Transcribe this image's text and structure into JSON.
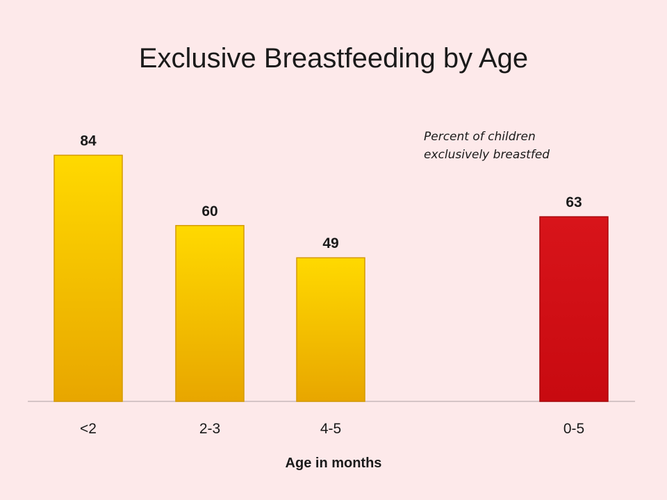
{
  "chart_data": {
    "type": "bar",
    "title": "Exclusive Breastfeeding by Age",
    "annotation": [
      "Percent of children",
      "exclusively breastfed"
    ],
    "xlabel": "Age in months",
    "ylabel": "",
    "ylim": [
      0,
      100
    ],
    "grid": false,
    "categories": [
      "<2",
      "2-3",
      "4-5",
      "0-5"
    ],
    "values": [
      84,
      60,
      49,
      63
    ],
    "colors": [
      "#f7c100",
      "#f7c100",
      "#f7c100",
      "#cc0a0f"
    ]
  }
}
